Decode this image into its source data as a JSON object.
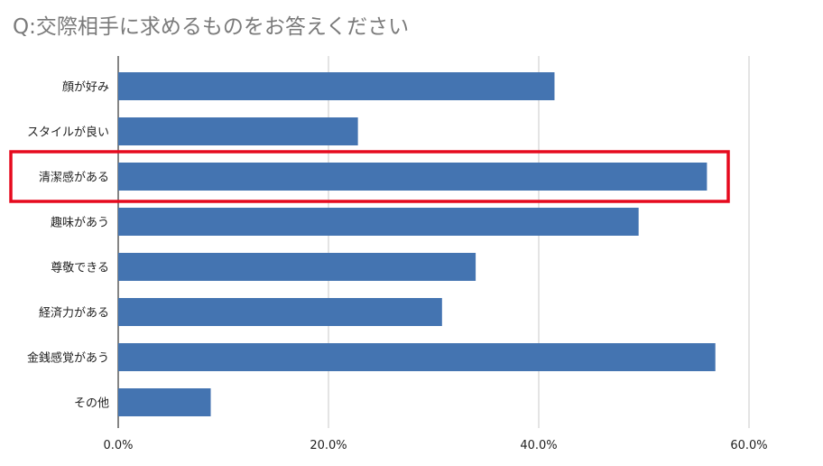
{
  "chart_data": {
    "type": "bar",
    "orientation": "horizontal",
    "title": "Q:交際相手に求めるものをお答えください",
    "categories": [
      "顔が好み",
      "スタイルが良い",
      "清潔感がある",
      "趣味があう",
      "尊敬できる",
      "経済力がある",
      "金銭感覚があう",
      "その他"
    ],
    "values": [
      41.5,
      22.8,
      56.0,
      49.5,
      34.0,
      30.8,
      56.8,
      8.8
    ],
    "xlim": [
      0,
      60
    ],
    "xticks": [
      0,
      20,
      40,
      60
    ],
    "xtick_labels": [
      "0.0%",
      "20.0%",
      "40.0%",
      "60.0%"
    ],
    "highlighted_category": "清潔感がある",
    "grid": "vertical",
    "colors": {
      "bar": "#4474b1",
      "highlight": "#e60a1e",
      "grid": "#c8c8c8",
      "axis": "#333333",
      "title": "#7a7a7a"
    }
  }
}
